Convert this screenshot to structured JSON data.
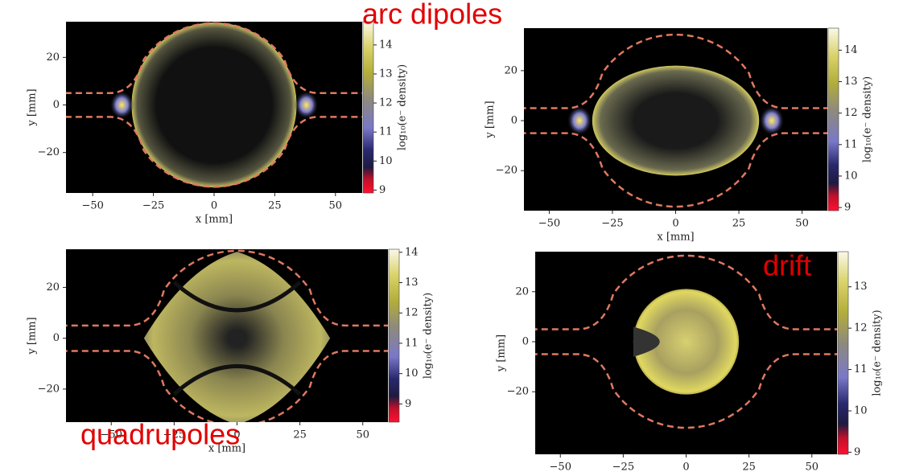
{
  "chart_data": [
    {
      "type": "heatmap",
      "annotation": "arc dipoles",
      "xlabel": "x [mm]",
      "ylabel": "y [mm]",
      "xlim": [
        -61,
        61
      ],
      "ylim": [
        -37,
        35
      ],
      "xticks": [
        {
          "value": -50,
          "label": "−50"
        },
        {
          "value": -25,
          "label": "−25"
        },
        0,
        25,
        50
      ],
      "yticks": [
        {
          "value": -20,
          "label": "−20"
        },
        0,
        20
      ],
      "colorbar_label": "log₁₀(e⁻ density)",
      "clim": [
        8.9,
        14.8
      ],
      "cticks": [
        9,
        10,
        11,
        12,
        13,
        14
      ]
    },
    {
      "type": "heatmap",
      "xlabel": "x [mm]",
      "ylabel": "y [mm]",
      "xlim": [
        -60,
        60
      ],
      "ylim": [
        -36,
        37
      ],
      "xticks": [
        {
          "value": -50,
          "label": "−50"
        },
        {
          "value": -25,
          "label": "−25"
        },
        0,
        25,
        50
      ],
      "yticks": [
        {
          "value": -20,
          "label": "−20"
        },
        0,
        20
      ],
      "colorbar_label": "log₁₀(e⁻ density)",
      "clim": [
        8.9,
        14.7
      ],
      "cticks": [
        9,
        10,
        11,
        12,
        13,
        14
      ]
    },
    {
      "type": "heatmap",
      "annotation": "quadrupoles",
      "xlabel": "x [mm]",
      "ylabel": "y [mm]",
      "xlim": [
        -68,
        60
      ],
      "ylim": [
        -33,
        35
      ],
      "xticks": [
        {
          "value": -50,
          "label": "−50"
        },
        {
          "value": -25,
          "label": "−25"
        },
        0,
        25,
        50
      ],
      "yticks": [
        {
          "value": -20,
          "label": "−20"
        },
        0,
        20
      ],
      "colorbar_label": "log₁₀(e⁻ density)",
      "clim": [
        8.4,
        14.1
      ],
      "cticks": [
        9,
        10,
        11,
        12,
        13,
        14
      ]
    },
    {
      "type": "heatmap",
      "annotation": "drift",
      "xlabel": "x [mm]",
      "ylabel": "y [mm]",
      "xlim": [
        -60,
        60
      ],
      "ylim": [
        -45,
        36
      ],
      "xticks": [
        {
          "value": -50,
          "label": "−50"
        },
        {
          "value": -25,
          "label": "−25"
        },
        0,
        25,
        50
      ],
      "yticks": [
        {
          "value": -20,
          "label": "−20"
        },
        0,
        20
      ],
      "colorbar_label": "log₁₀(e⁻ density)",
      "clim": [
        8.95,
        13.85
      ],
      "cticks": [
        9,
        10,
        11,
        12,
        13
      ]
    }
  ]
}
